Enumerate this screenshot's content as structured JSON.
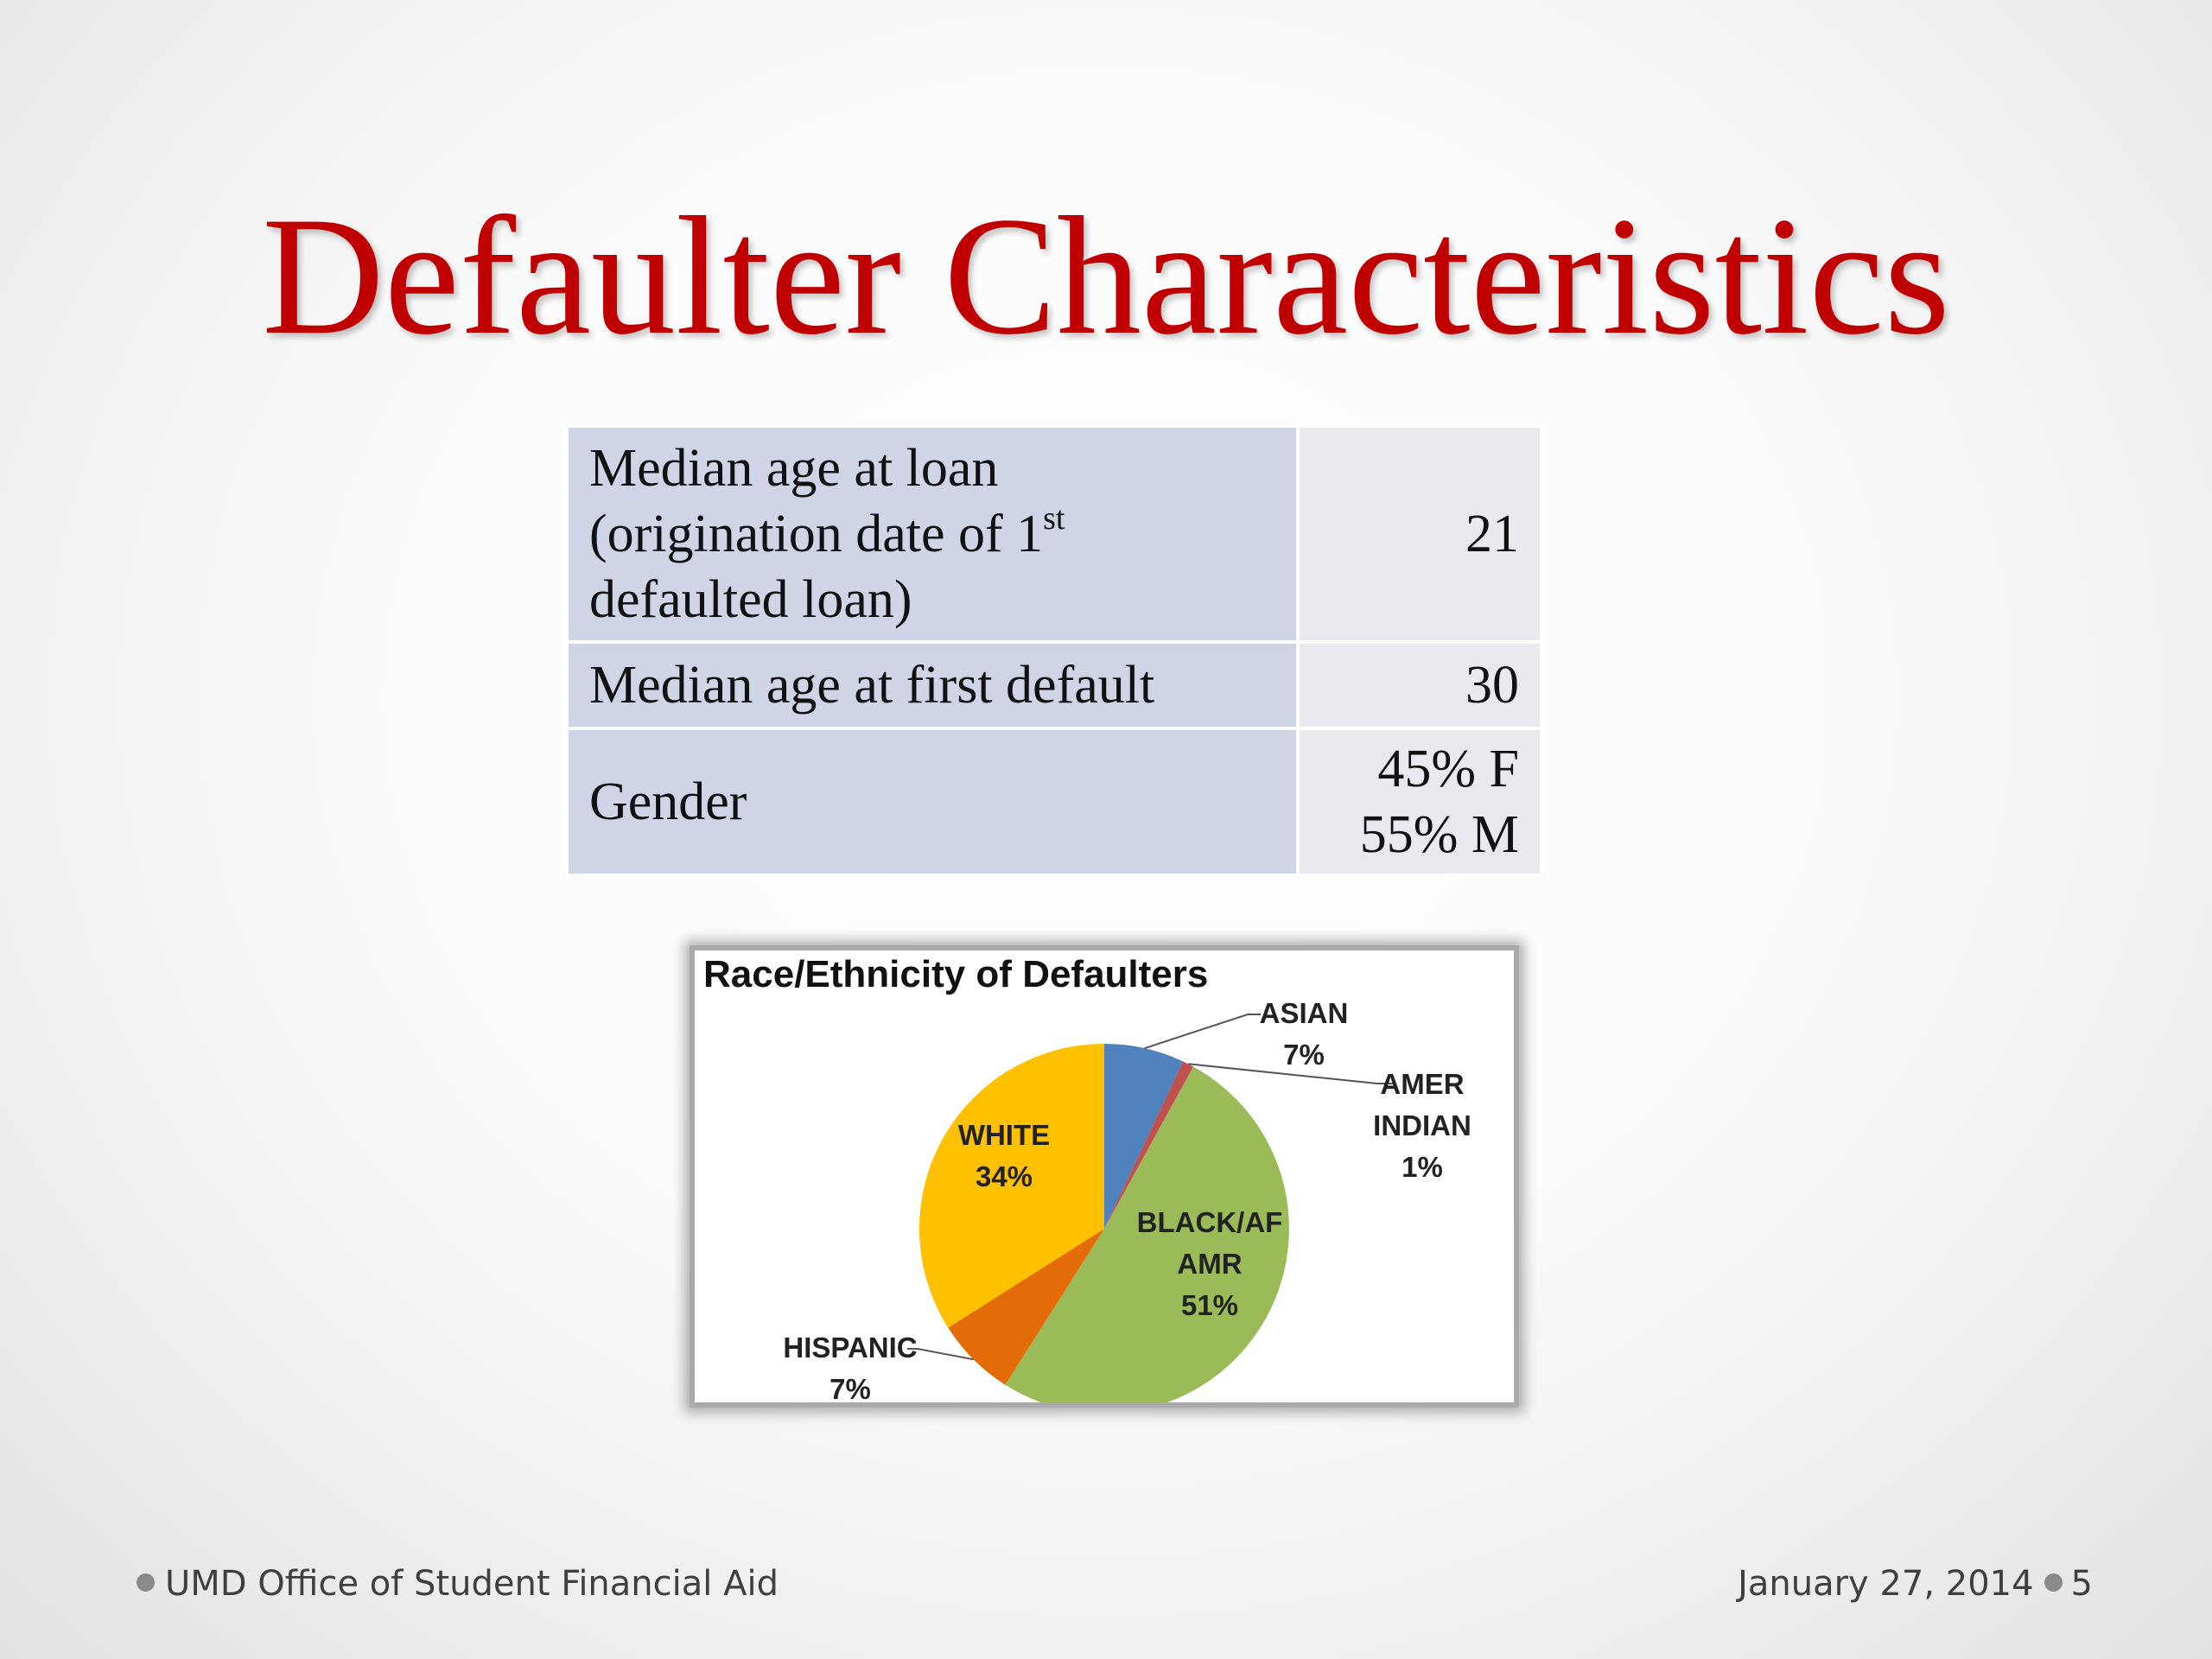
{
  "slide": {
    "title": "Defaulter Characteristics",
    "title_color": "#c00000"
  },
  "table": {
    "rows": [
      {
        "label_line1": "Median age at loan",
        "label_line2_pre": "(origination date of 1",
        "label_line2_sup": "st",
        "label_line3": "defaulted loan)",
        "value": "21"
      },
      {
        "label": "Median age at first default",
        "value": "30"
      },
      {
        "label": "Gender",
        "value_line1": "45% F",
        "value_line2": "55% M"
      }
    ]
  },
  "chart_data": {
    "type": "pie",
    "title": "Race/Ethnicity of Defaulters",
    "slices": [
      {
        "name": "ASIAN",
        "value": 7,
        "label": "7%",
        "color": "#4f81bd"
      },
      {
        "name": "AMER INDIAN",
        "value": 1,
        "label": "1%",
        "color": "#c0504d"
      },
      {
        "name": "BLACK/AF AMR",
        "value": 51,
        "label": "51%",
        "color": "#9bbb59"
      },
      {
        "name": "HISPANIC",
        "value": 7,
        "label": "7%",
        "color": "#e36c09"
      },
      {
        "name": "WHITE",
        "value": 34,
        "label": "34%",
        "color": "#ffc000"
      }
    ]
  },
  "footer": {
    "left_text": "UMD Office of Student Financial Aid",
    "date": "January 27, 2014",
    "page_number": "5"
  }
}
